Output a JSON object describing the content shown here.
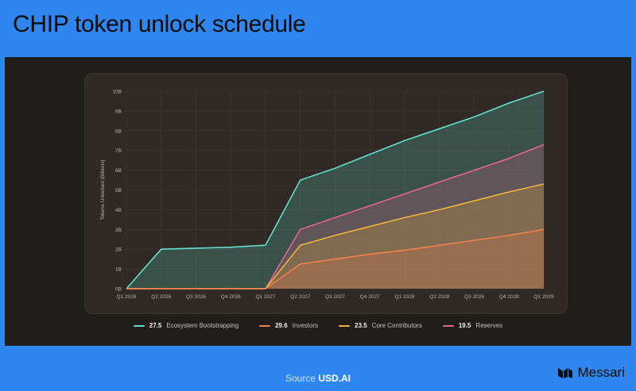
{
  "header": {
    "title": "CHIP token unlock schedule"
  },
  "footer": {
    "source_label": "Source",
    "source_value": "USD.AI",
    "brand": "Messari"
  },
  "colors": {
    "background": "#2f86ee",
    "panel": "#211d1b",
    "card": "#302926"
  },
  "chart_data": {
    "type": "area",
    "ylabel": "Tokens Unlocked (Billions)",
    "xlabel": "",
    "ylim": [
      0,
      10
    ],
    "yticks": [
      "0B",
      "1B",
      "2B",
      "3B",
      "4B",
      "5B",
      "6B",
      "7B",
      "8B",
      "9B",
      "10B"
    ],
    "categories": [
      "Q1 2026",
      "Q2 2026",
      "Q3 2026",
      "Q4 2026",
      "Q1 2027",
      "Q2 2027",
      "Q3 2027",
      "Q4 2027",
      "Q1 2028",
      "Q2 2028",
      "Q3 2028",
      "Q4 2028",
      "Q1 2029"
    ],
    "grid": true,
    "legend_position": "bottom",
    "series": [
      {
        "name": "Ecosystem Bootstrapping",
        "legend_value": "27.5",
        "color": "#5fe0c9",
        "values": [
          0,
          2.0,
          2.05,
          2.1,
          2.2,
          5.5,
          6.1,
          6.8,
          7.5,
          8.1,
          8.7,
          9.4,
          10.0
        ]
      },
      {
        "name": "Reserves",
        "legend_value": "19.5",
        "color": "#e8648f",
        "values": [
          0,
          0,
          0,
          0,
          0,
          3.0,
          3.6,
          4.2,
          4.8,
          5.4,
          6.0,
          6.6,
          7.3
        ]
      },
      {
        "name": "Core Contributors",
        "legend_value": "23.5",
        "color": "#f0b43a",
        "values": [
          0,
          0,
          0,
          0,
          0,
          2.2,
          2.7,
          3.15,
          3.6,
          4.0,
          4.45,
          4.9,
          5.3
        ]
      },
      {
        "name": "Investors",
        "legend_value": "29.6",
        "color": "#f2804a",
        "values": [
          0,
          0,
          0,
          0,
          0,
          1.25,
          1.5,
          1.75,
          1.95,
          2.2,
          2.45,
          2.7,
          3.0
        ]
      }
    ],
    "legend_order": [
      "Ecosystem Bootstrapping",
      "Investors",
      "Core Contributors",
      "Reserves"
    ]
  }
}
